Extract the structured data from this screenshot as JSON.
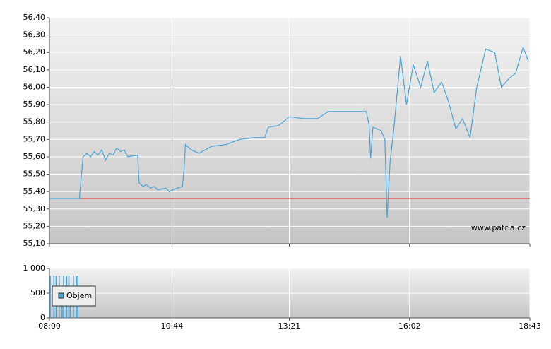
{
  "chart_data": [
    {
      "type": "line",
      "watermark": "www.patria.cz",
      "ylim": [
        55.1,
        56.4
      ],
      "yticks": [
        {
          "value": 55.1,
          "label": "55,10"
        },
        {
          "value": 55.2,
          "label": "55,20"
        },
        {
          "value": 55.3,
          "label": "55,30"
        },
        {
          "value": 55.4,
          "label": "55,40"
        },
        {
          "value": 55.5,
          "label": "55,50"
        },
        {
          "value": 55.6,
          "label": "55,60"
        },
        {
          "value": 55.7,
          "label": "55,70"
        },
        {
          "value": 55.8,
          "label": "55,80"
        },
        {
          "value": 55.9,
          "label": "55,90"
        },
        {
          "value": 56.0,
          "label": "56,00"
        },
        {
          "value": 56.1,
          "label": "56,10"
        },
        {
          "value": 56.2,
          "label": "56,20"
        },
        {
          "value": 56.3,
          "label": "56,30"
        },
        {
          "value": 56.4,
          "label": "56,40"
        }
      ],
      "reference_line": {
        "value": 55.36,
        "color": "#d83030"
      },
      "grid": true,
      "series": [
        {
          "color": "#4aa3d4",
          "x": [
            "08:00",
            "08:40",
            "08:45",
            "08:50",
            "08:55",
            "09:00",
            "09:05",
            "09:10",
            "09:15",
            "09:20",
            "09:25",
            "09:30",
            "09:35",
            "09:40",
            "09:45",
            "09:58",
            "10:00",
            "10:05",
            "10:10",
            "10:15",
            "10:20",
            "10:25",
            "10:36",
            "10:40",
            "10:45",
            "10:58",
            "11:00",
            "11:02",
            "11:10",
            "11:20",
            "11:37",
            "11:56",
            "12:15",
            "12:34",
            "12:48",
            "12:53",
            "13:07",
            "13:21",
            "13:40",
            "13:59",
            "14:13",
            "14:32",
            "14:51",
            "15:04",
            "15:08",
            "15:10",
            "15:13",
            "15:24",
            "15:29",
            "15:32",
            "15:36",
            "15:41",
            "15:44",
            "15:50",
            "15:58",
            "16:07",
            "16:17",
            "16:26",
            "16:35",
            "16:45",
            "16:54",
            "17:04",
            "17:13",
            "17:23",
            "17:32",
            "17:44",
            "17:56",
            "18:05",
            "18:15",
            "18:24",
            "18:34",
            "18:41"
          ],
          "values": [
            55.36,
            55.36,
            55.6,
            55.62,
            55.6,
            55.63,
            55.61,
            55.64,
            55.58,
            55.62,
            55.61,
            55.65,
            55.63,
            55.64,
            55.6,
            55.61,
            55.45,
            55.43,
            55.44,
            55.42,
            55.43,
            55.41,
            55.42,
            55.4,
            55.41,
            55.43,
            55.52,
            55.67,
            55.64,
            55.62,
            55.66,
            55.67,
            55.7,
            55.71,
            55.71,
            55.77,
            55.78,
            55.83,
            55.82,
            55.82,
            55.86,
            55.86,
            55.86,
            55.86,
            55.78,
            55.59,
            55.77,
            55.75,
            55.7,
            55.25,
            55.57,
            55.76,
            55.9,
            56.18,
            55.9,
            56.13,
            56.0,
            56.15,
            55.97,
            56.03,
            55.92,
            55.76,
            55.82,
            55.71,
            56.0,
            56.22,
            56.2,
            56.0,
            56.05,
            56.08,
            56.23,
            56.15
          ]
        }
      ]
    },
    {
      "type": "bar",
      "xlim": [
        "08:00",
        "18:43"
      ],
      "xticks": [
        "08:00",
        "10:44",
        "13:21",
        "16:02",
        "18:43"
      ],
      "ylim": [
        0,
        1000
      ],
      "yticks": [
        0,
        500,
        {
          "value": 1000,
          "label": "1 000"
        }
      ],
      "grid": true,
      "legend": "upper-left",
      "series": [
        {
          "name": "Objem",
          "color": "#4aa3d4",
          "x": [
            "08:01",
            "08:06",
            "08:09",
            "08:13",
            "08:17",
            "08:19",
            "08:23",
            "08:26",
            "08:28",
            "08:32",
            "08:36",
            "08:38"
          ],
          "values": [
            850,
            850,
            850,
            850,
            600,
            850,
            850,
            850,
            500,
            850,
            850,
            850
          ]
        }
      ]
    }
  ]
}
